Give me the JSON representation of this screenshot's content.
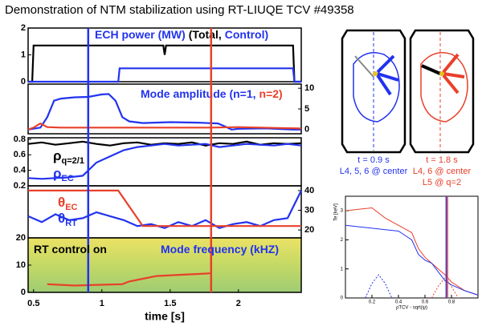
{
  "title": "Demonstration of NTM stabilization using RT-LIUQE TCV #49358",
  "diagrams": [
    {
      "time": "t = 0.9 s",
      "lines": [
        "L4, 5, 6 @ center"
      ]
    },
    {
      "time": "t = 1.8 s",
      "lines": [
        "L4, 6 @ center",
        "L5 @ q=2"
      ]
    }
  ],
  "chart_data": [
    {
      "type": "line",
      "xlim": [
        0.46,
        2.46
      ],
      "ylim": [
        0,
        2
      ],
      "yticks": [
        0,
        1,
        2
      ],
      "labels": [
        {
          "text": "ECH power (MW)",
          "color": "#2233ee"
        },
        {
          "text": "(Total,",
          "color": "#000000"
        },
        {
          "text": "Control)",
          "color": "#2233ee"
        }
      ],
      "series": [
        {
          "color": "#000000",
          "x": [
            0.46,
            0.49,
            0.5,
            1.45,
            1.46,
            1.47,
            2.4,
            2.41,
            2.46
          ],
          "values": [
            0,
            0,
            1.35,
            1.35,
            1.0,
            1.35,
            1.35,
            0,
            0
          ]
        },
        {
          "color": "#2233ee",
          "x": [
            0.46,
            1.12,
            1.13,
            2.4,
            2.41,
            2.46
          ],
          "values": [
            0,
            0,
            0.5,
            0.5,
            0,
            0
          ]
        }
      ]
    },
    {
      "type": "line",
      "xlim": [
        0.46,
        2.46
      ],
      "y2lim": [
        -1,
        11
      ],
      "y2ticks": [
        0,
        5,
        10
      ],
      "labels": [
        {
          "text": "Mode amplitude (n=1,",
          "color": "#2233ee"
        },
        {
          "text": "n=2)",
          "color": "#e8402a"
        }
      ],
      "series": [
        {
          "color": "#2233ee",
          "axis": "y2",
          "x": [
            0.46,
            0.55,
            0.6,
            0.65,
            0.7,
            0.8,
            0.9,
            1.0,
            1.05,
            1.1,
            1.15,
            1.2,
            1.3,
            1.5,
            1.7,
            1.85,
            1.9,
            1.95,
            2.0,
            2.2,
            2.4,
            2.46
          ],
          "values": [
            0,
            0.5,
            3,
            7,
            7.5,
            7.8,
            7.9,
            8.5,
            8.6,
            7,
            3,
            2,
            1.6,
            1.8,
            1.7,
            1.5,
            0.8,
            0,
            0.2,
            0.3,
            0,
            0
          ]
        },
        {
          "color": "#e8402a",
          "axis": "y2",
          "x": [
            0.46,
            0.5,
            0.55,
            0.6,
            0.7,
            0.9,
            1.2,
            1.5,
            1.8,
            2.0,
            2.3,
            2.46
          ],
          "values": [
            0,
            0.5,
            1.5,
            0.6,
            0.5,
            0.5,
            0.5,
            0.5,
            0.5,
            0.6,
            0.4,
            0.3
          ]
        }
      ]
    },
    {
      "type": "line",
      "xlim": [
        0.46,
        2.46
      ],
      "ylim": [
        0.2,
        0.82
      ],
      "yticks": [
        0.2,
        0.4,
        0.6,
        0.8
      ],
      "labels": [
        {
          "text": "ρ",
          "sub": "q=2/1",
          "color": "#000000"
        },
        {
          "text": "ρ",
          "sub": "EC",
          "color": "#2233ee"
        }
      ],
      "series": [
        {
          "color": "#000000",
          "x": [
            0.46,
            0.56,
            0.66,
            0.76,
            0.86,
            0.96,
            1.06,
            1.16,
            1.26,
            1.36,
            1.46,
            1.56,
            1.66,
            1.76,
            1.86,
            1.96,
            2.06,
            2.16,
            2.26,
            2.36,
            2.46
          ],
          "values": [
            0.74,
            0.76,
            0.73,
            0.75,
            0.77,
            0.74,
            0.72,
            0.75,
            0.76,
            0.73,
            0.75,
            0.74,
            0.76,
            0.72,
            0.75,
            0.74,
            0.77,
            0.73,
            0.75,
            0.74,
            0.75
          ]
        },
        {
          "color": "#2233ee",
          "x": [
            0.46,
            0.56,
            0.66,
            0.76,
            0.86,
            0.96,
            1.06,
            1.16,
            1.26,
            1.36,
            1.46,
            1.56,
            1.66,
            1.76,
            1.86,
            1.96,
            2.06,
            2.16,
            2.26,
            2.36,
            2.46
          ],
          "values": [
            0.3,
            0.29,
            0.3,
            0.31,
            0.33,
            0.5,
            0.58,
            0.66,
            0.7,
            0.72,
            0.74,
            0.72,
            0.73,
            0.74,
            0.7,
            0.72,
            0.74,
            0.73,
            0.72,
            0.74,
            0.72
          ]
        }
      ]
    },
    {
      "type": "line",
      "xlim": [
        0.46,
        2.46
      ],
      "y2lim": [
        16,
        42.4
      ],
      "y2ticks": [
        20,
        30,
        40
      ],
      "labels": [
        {
          "text": "θ",
          "sub": "EC",
          "color": "#e8402a"
        },
        {
          "text": "θ",
          "sub": "RT",
          "color": "#2233ee"
        }
      ],
      "series": [
        {
          "color": "#2233ee",
          "axis": "y2",
          "x": [
            0.46,
            0.56,
            0.66,
            0.76,
            0.86,
            0.96,
            1.06,
            1.16,
            1.26,
            1.36,
            1.46,
            1.56,
            1.66,
            1.76,
            1.86,
            1.96,
            2.06,
            2.16,
            2.26,
            2.36,
            2.46
          ],
          "values": [
            27,
            24,
            28,
            25,
            26,
            29,
            27,
            25,
            22,
            23,
            21,
            24,
            22,
            25,
            21,
            23,
            24,
            22,
            25,
            26,
            40
          ]
        },
        {
          "color": "#e8402a",
          "axis": "y2",
          "x": [
            0.46,
            1.12,
            1.3,
            2.46
          ],
          "values": [
            40,
            40,
            22,
            22
          ]
        }
      ]
    },
    {
      "type": "line",
      "xlim": [
        0.46,
        2.46
      ],
      "ylim": [
        0,
        20
      ],
      "yticks": [
        0,
        10,
        20
      ],
      "xticks": [
        0.5,
        1,
        1.5,
        2
      ],
      "xlabel": "time [s]",
      "spectrogram": true,
      "labels": [
        {
          "text": "RT control on",
          "color": "#000000"
        },
        {
          "text": "Mode frequency (kHZ)",
          "color": "#2233ee"
        }
      ],
      "series": [
        {
          "color": "#e8402a",
          "x": [
            0.6,
            0.8,
            1.0,
            1.15,
            1.2,
            1.3,
            1.4,
            1.6,
            1.8
          ],
          "values": [
            3,
            2.5,
            2.8,
            3,
            4,
            5,
            6,
            6.5,
            7
          ]
        }
      ],
      "markers": [
        {
          "x": 0.9,
          "color": "#2233ee"
        },
        {
          "x": 1.8,
          "color": "#e8402a"
        }
      ]
    },
    {
      "type": "line",
      "xlim": [
        0,
        1
      ],
      "ylim": [
        0,
        3.5
      ],
      "xticks": [
        0.2,
        0.4,
        0.6,
        0.8
      ],
      "yticks": [
        0,
        1,
        2,
        3
      ],
      "xlabel": "ρTCV - sqrt(ψ)",
      "ylabel": "Te [keV]",
      "series": [
        {
          "color": "#e8402a",
          "x": [
            0,
            0.1,
            0.2,
            0.3,
            0.4,
            0.5,
            0.55,
            0.6,
            0.65,
            0.7,
            0.75,
            0.8,
            0.9,
            1.0
          ],
          "values": [
            3.0,
            3.05,
            3.1,
            2.75,
            2.5,
            2.25,
            1.7,
            1.4,
            1.2,
            1.0,
            0.8,
            0.55,
            0.25,
            0.1
          ]
        },
        {
          "color": "#2233ee",
          "x": [
            0,
            0.1,
            0.2,
            0.3,
            0.4,
            0.5,
            0.55,
            0.6,
            0.65,
            0.7,
            0.75,
            0.8,
            0.9,
            1.0
          ],
          "values": [
            2.5,
            2.45,
            2.4,
            2.35,
            2.3,
            2.0,
            1.5,
            1.3,
            1.2,
            0.9,
            0.6,
            0.45,
            0.25,
            0.1
          ]
        },
        {
          "color": "#2233ee",
          "dashed": true,
          "x": [
            0.15,
            0.2,
            0.25,
            0.3,
            0.35
          ],
          "values": [
            0,
            0.5,
            0.8,
            0.5,
            0
          ]
        },
        {
          "color": "#e8402a",
          "dashed": true,
          "x": [
            0.65,
            0.7,
            0.75,
            0.8,
            0.85
          ],
          "values": [
            0,
            0.4,
            0.7,
            0.4,
            0
          ]
        }
      ],
      "markers": [
        {
          "x": 0.77,
          "color": "#e8402a"
        },
        {
          "x": 0.76,
          "color": "#2233ee"
        }
      ]
    }
  ]
}
